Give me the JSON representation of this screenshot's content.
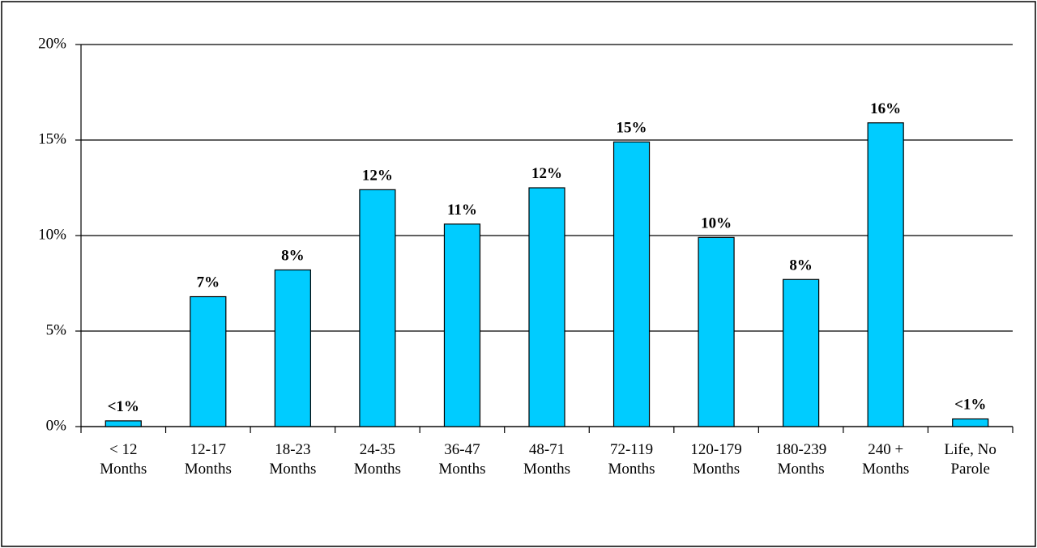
{
  "chart_data": {
    "type": "bar",
    "categories": [
      [
        "< 12",
        "Months"
      ],
      [
        "12-17",
        "Months"
      ],
      [
        "18-23",
        "Months"
      ],
      [
        "24-35",
        "Months"
      ],
      [
        "36-47",
        "Months"
      ],
      [
        "48-71",
        "Months"
      ],
      [
        "72-119",
        "Months"
      ],
      [
        "120-179",
        "Months"
      ],
      [
        "180-239",
        "Months"
      ],
      [
        "240 +",
        "Months"
      ],
      [
        "Life, No",
        "Parole"
      ]
    ],
    "values": [
      0.3,
      6.8,
      8.2,
      12.4,
      10.6,
      12.5,
      14.9,
      9.9,
      7.7,
      15.9,
      0.4
    ],
    "value_labels": [
      "<1%",
      "7%",
      "8%",
      "12%",
      "11%",
      "12%",
      "15%",
      "10%",
      "8%",
      "16%",
      "<1%"
    ],
    "color": "#00ccff",
    "ylim": [
      0,
      20
    ],
    "yticks": [
      {
        "value": 0,
        "label": "0%"
      },
      {
        "value": 5,
        "label": "5%"
      },
      {
        "value": 10,
        "label": "10%"
      },
      {
        "value": 15,
        "label": "15%"
      },
      {
        "value": 20,
        "label": "20%"
      }
    ],
    "grid": true
  }
}
